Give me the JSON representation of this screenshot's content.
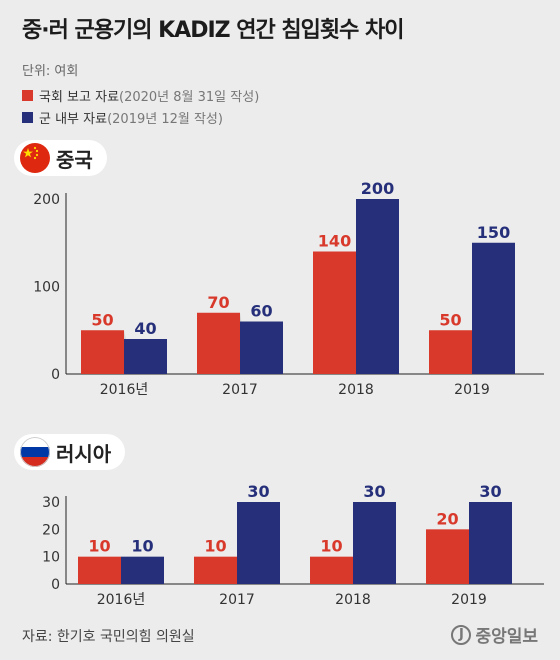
{
  "title": "중·러 군용기의 KADIZ 연간 침입횟수 차이",
  "unit": "단위: 여회",
  "legend": [
    {
      "main": "국회 보고 자료",
      "note": "(2020년 8월 31일 작성)",
      "color": "#d8392b"
    },
    {
      "main": "군 내부 자료",
      "note": "(2019년 12월 작성)",
      "color": "#26307a"
    }
  ],
  "source": "자료: 한기호 국민의힘 의원실",
  "logo": "중앙일보",
  "logo_mark": "J",
  "chart_data": [
    {
      "type": "bar",
      "panel": "중국",
      "flag_icon": "china-flag-icon",
      "categories": [
        "2016년",
        "2017",
        "2018",
        "2019"
      ],
      "series": [
        {
          "name": "국회 보고 자료",
          "values": [
            50,
            70,
            140,
            50
          ],
          "color": "#d8392b"
        },
        {
          "name": "군 내부 자료",
          "values": [
            40,
            60,
            200,
            150
          ],
          "color": "#26307a"
        }
      ],
      "yticks": [
        0,
        100,
        200
      ],
      "ylim": [
        0,
        200
      ],
      "grid": false
    },
    {
      "type": "bar",
      "panel": "러시아",
      "flag_icon": "russia-flag-icon",
      "categories": [
        "2016년",
        "2017",
        "2018",
        "2019"
      ],
      "series": [
        {
          "name": "국회 보고 자료",
          "values": [
            10,
            10,
            10,
            20
          ],
          "color": "#d8392b"
        },
        {
          "name": "군 내부 자료",
          "values": [
            10,
            30,
            30,
            30
          ],
          "color": "#26307a"
        }
      ],
      "yticks": [
        0,
        10,
        20,
        30
      ],
      "ylim": [
        0,
        30
      ],
      "grid": false
    }
  ]
}
